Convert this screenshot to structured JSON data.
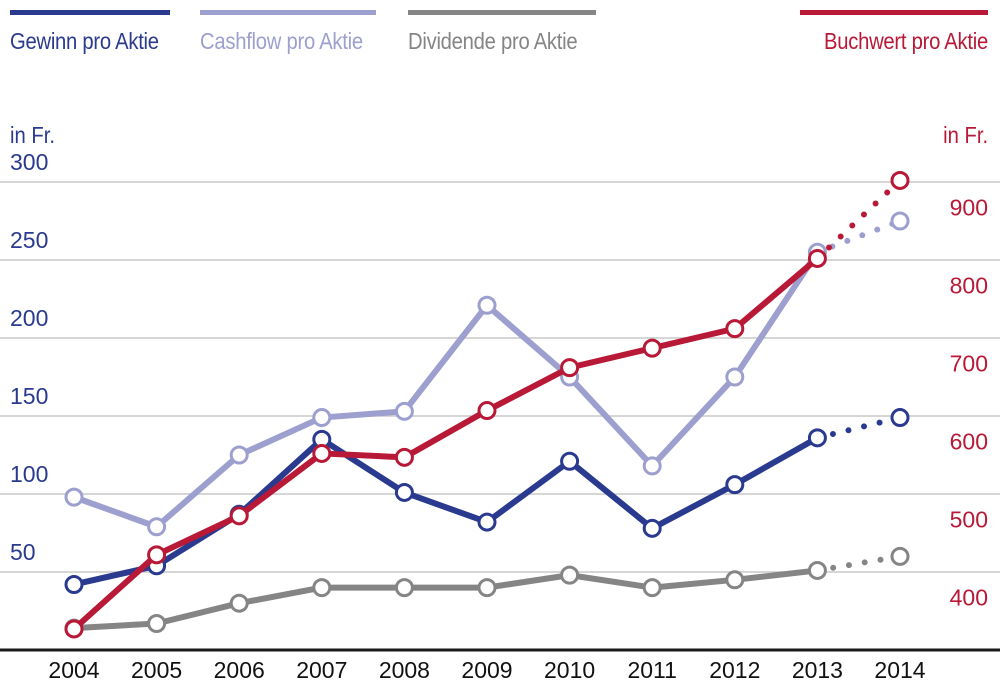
{
  "chart_data": {
    "type": "line",
    "categories": [
      "2004",
      "2005",
      "2006",
      "2007",
      "2008",
      "2009",
      "2010",
      "2011",
      "2012",
      "2013",
      "2014"
    ],
    "left_axis": {
      "unit": "in Fr.",
      "ticks": [
        50,
        100,
        150,
        200,
        250,
        300
      ],
      "tick_labels": [
        "50",
        "100",
        "150",
        "200",
        "250",
        "300"
      ],
      "range": [
        0,
        350
      ]
    },
    "right_axis": {
      "unit": "in Fr.",
      "ticks": [
        400,
        500,
        600,
        700,
        800,
        900
      ],
      "tick_labels": [
        "400",
        "500",
        "600",
        "700",
        "800",
        "900"
      ],
      "range": [
        333,
        1000
      ]
    },
    "series": [
      {
        "name": "Gewinn pro Aktie",
        "axis": "left",
        "color": "#2a3a8f",
        "values": [
          42,
          54,
          87,
          135,
          101,
          82,
          121,
          78,
          106,
          136,
          149
        ],
        "estimate_from": 9
      },
      {
        "name": "Cashflow pro Aktie",
        "axis": "left",
        "color": "#9d9fcf",
        "values": [
          98,
          79,
          125,
          149,
          153,
          221,
          175,
          118,
          175,
          255,
          275
        ],
        "estimate_from": 9
      },
      {
        "name": "Dividende pro Aktie",
        "axis": "left",
        "color": "#858585",
        "values": [
          14,
          17,
          30,
          40,
          40,
          40,
          48,
          40,
          45,
          51,
          60
        ],
        "estimate_from": 9
      },
      {
        "name": "Buchwert pro Aktie",
        "axis": "right",
        "color": "#b81937",
        "values": [
          360,
          455,
          505,
          585,
          580,
          640,
          695,
          720,
          745,
          835,
          935
        ],
        "estimate_from": 9
      }
    ],
    "grid": true,
    "legend_position": "top"
  }
}
